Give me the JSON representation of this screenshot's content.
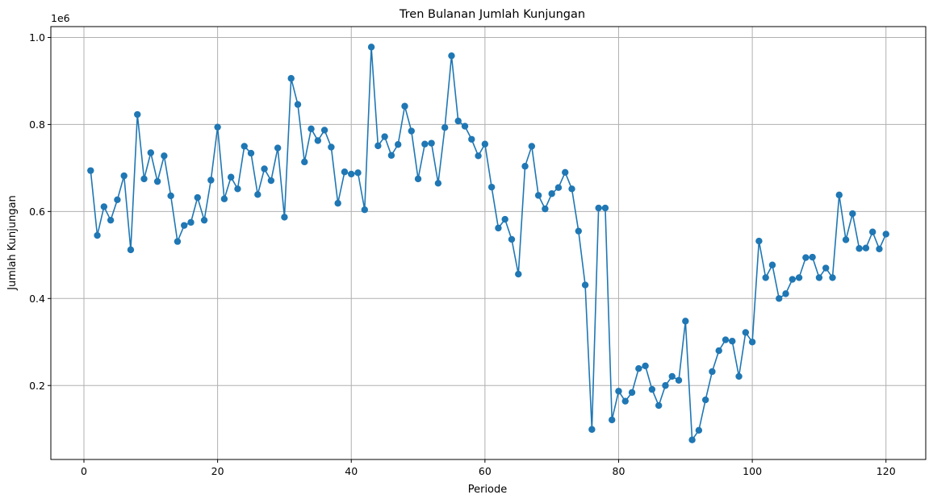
{
  "chart_data": {
    "type": "line",
    "title": "Tren Bulanan Jumlah Kunjungan",
    "xlabel": "Periode",
    "ylabel": "Jumlah Kunjungan",
    "y_offset_label": "1e6",
    "xlim": [
      -4.95,
      125.95
    ],
    "ylim": [
      0.03,
      1.025
    ],
    "x_ticks": [
      0,
      20,
      40,
      60,
      80,
      100,
      120
    ],
    "x_tick_labels": [
      "0",
      "20",
      "40",
      "60",
      "80",
      "100",
      "120"
    ],
    "y_ticks": [
      0.2,
      0.4,
      0.6,
      0.8,
      1.0
    ],
    "y_tick_labels": [
      "0.2",
      "0.4",
      "0.6",
      "0.8",
      "1.0"
    ],
    "grid": true,
    "marker": "circle",
    "color": "#1f77b4",
    "series": [
      {
        "x": [
          1,
          2,
          3,
          4,
          5,
          6,
          7,
          8,
          9,
          10,
          11,
          12,
          13,
          14,
          15,
          16,
          17,
          18,
          19,
          20,
          21,
          22,
          23,
          24,
          25,
          26,
          27,
          28,
          29,
          30,
          31,
          32,
          33,
          34,
          35,
          36,
          37,
          38,
          39,
          40,
          41,
          42,
          43,
          44,
          45,
          46,
          47,
          48,
          49,
          50,
          51,
          52,
          53,
          54,
          55,
          56,
          57,
          58,
          59,
          60,
          61,
          62,
          63,
          64,
          65,
          66,
          67,
          68,
          69,
          70,
          71,
          72,
          73,
          74,
          75,
          76,
          77,
          78,
          79,
          80,
          81,
          82,
          83,
          84,
          85,
          86,
          87,
          88,
          89,
          90,
          91,
          92,
          93,
          94,
          95,
          96,
          97,
          98,
          99,
          100,
          101,
          102,
          103,
          104,
          105,
          106,
          107,
          108,
          109,
          110,
          111,
          112,
          113,
          114,
          115,
          116,
          117,
          118,
          119,
          120
        ],
        "values": [
          0.694,
          0.545,
          0.611,
          0.58,
          0.627,
          0.682,
          0.512,
          0.823,
          0.675,
          0.735,
          0.669,
          0.728,
          0.636,
          0.531,
          0.568,
          0.575,
          0.632,
          0.58,
          0.672,
          0.794,
          0.629,
          0.679,
          0.652,
          0.75,
          0.734,
          0.639,
          0.698,
          0.671,
          0.746,
          0.587,
          0.906,
          0.846,
          0.714,
          0.79,
          0.763,
          0.787,
          0.748,
          0.619,
          0.691,
          0.686,
          0.689,
          0.604,
          0.978,
          0.751,
          0.772,
          0.729,
          0.754,
          0.842,
          0.785,
          0.675,
          0.755,
          0.757,
          0.665,
          0.793,
          0.958,
          0.808,
          0.796,
          0.766,
          0.728,
          0.755,
          0.656,
          0.562,
          0.582,
          0.536,
          0.456,
          0.704,
          0.75,
          0.637,
          0.606,
          0.641,
          0.655,
          0.69,
          0.652,
          0.555,
          0.431,
          0.099,
          0.608,
          0.608,
          0.121,
          0.187,
          0.164,
          0.184,
          0.239,
          0.245,
          0.191,
          0.154,
          0.2,
          0.221,
          0.212,
          0.348,
          0.075,
          0.097,
          0.167,
          0.232,
          0.28,
          0.305,
          0.302,
          0.221,
          0.322,
          0.3,
          0.532,
          0.448,
          0.477,
          0.4,
          0.411,
          0.444,
          0.448,
          0.494,
          0.495,
          0.448,
          0.47,
          0.448,
          0.638,
          0.535,
          0.595,
          0.515,
          0.516,
          0.553,
          0.514,
          0.548
        ]
      }
    ]
  }
}
